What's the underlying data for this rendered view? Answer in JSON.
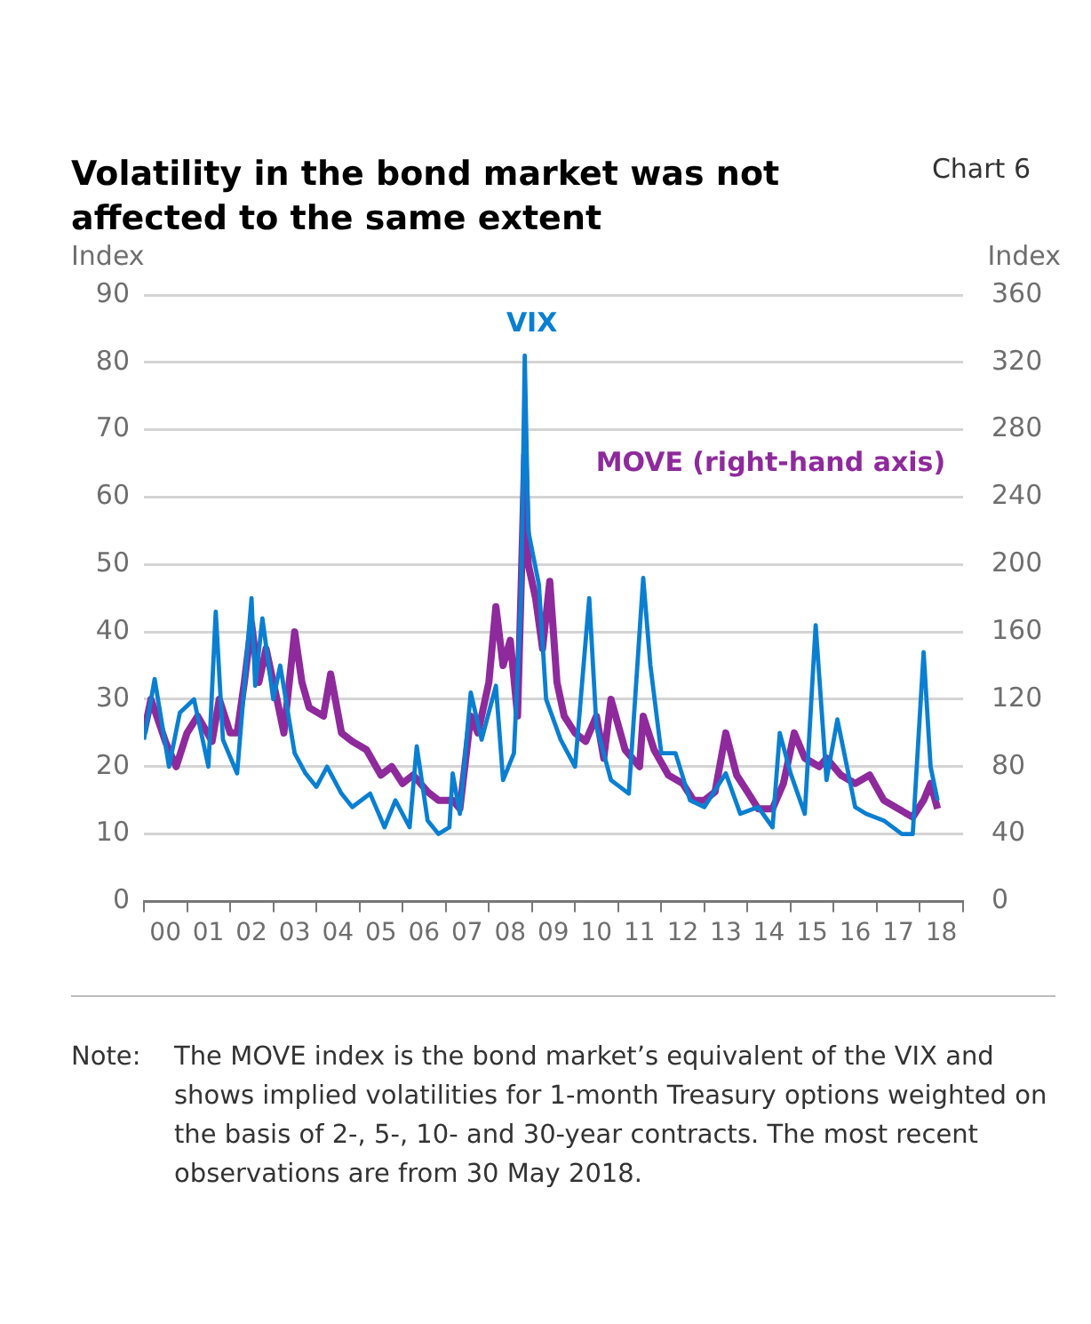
{
  "chart_data": {
    "type": "line",
    "title": "Volatility in the bond market was not affected to the same extent",
    "xlim": [
      "2000",
      "2019"
    ],
    "xticks": [
      {
        "value": "2000",
        "label": null
      },
      {
        "value": "2000-07",
        "label": "00"
      },
      {
        "value": "2001",
        "label": null
      },
      {
        "value": "2001-07",
        "label": "01"
      },
      {
        "value": "2002",
        "label": null
      },
      {
        "value": "2002-07",
        "label": "02"
      },
      {
        "value": "2003",
        "label": null
      },
      {
        "value": "2003-07",
        "label": "03"
      },
      {
        "value": "2004",
        "label": null
      },
      {
        "value": "2004-07",
        "label": "04"
      },
      {
        "value": "2005",
        "label": null
      },
      {
        "value": "2005-07",
        "label": "05"
      },
      {
        "value": "2006",
        "label": null
      },
      {
        "value": "2006-07",
        "label": "06"
      },
      {
        "value": "2007",
        "label": null
      },
      {
        "value": "2007-07",
        "label": "07"
      },
      {
        "value": "2008",
        "label": null
      },
      {
        "value": "2008-07",
        "label": "08"
      },
      {
        "value": "2009",
        "label": null
      },
      {
        "value": "2009-07",
        "label": "09"
      },
      {
        "value": "2010",
        "label": null
      },
      {
        "value": "2010-07",
        "label": "10"
      },
      {
        "value": "2011",
        "label": null
      },
      {
        "value": "2011-07",
        "label": "11"
      },
      {
        "value": "2012",
        "label": null
      },
      {
        "value": "2012-07",
        "label": "12"
      },
      {
        "value": "2013",
        "label": null
      },
      {
        "value": "2013-07",
        "label": "13"
      },
      {
        "value": "2014",
        "label": null
      },
      {
        "value": "2014-07",
        "label": "14"
      },
      {
        "value": "2015",
        "label": null
      },
      {
        "value": "2015-07",
        "label": "15"
      },
      {
        "value": "2016",
        "label": null
      },
      {
        "value": "2016-07",
        "label": "16"
      },
      {
        "value": "2017",
        "label": null
      },
      {
        "value": "2017-07",
        "label": "17"
      },
      {
        "value": "2018",
        "label": null
      },
      {
        "value": "2018-07",
        "label": "18"
      },
      {
        "value": "2019",
        "label": null
      }
    ],
    "ylabel": "Index",
    "y2label": "Index",
    "ylim": [
      0,
      90
    ],
    "yticks": [
      0,
      10,
      20,
      30,
      40,
      50,
      60,
      70,
      80,
      90
    ],
    "y2lim": [
      0,
      360
    ],
    "y2ticks": [
      0,
      40,
      80,
      120,
      160,
      200,
      240,
      280,
      320,
      360
    ],
    "grid": "y",
    "legend": false,
    "marker": "none",
    "line_style": "solid",
    "series": [
      {
        "name": "VIX",
        "color": "#0a7fd2",
        "x": [
          "2000-01",
          "2000-04",
          "2000-08",
          "2000-11",
          "2001-03",
          "2001-07",
          "2001-09",
          "2001-11",
          "2002-03",
          "2002-07",
          "2002-08",
          "2002-10",
          "2003-01",
          "2003-03",
          "2003-07",
          "2003-10",
          "2004-01",
          "2004-04",
          "2004-08",
          "2004-11",
          "2005-04",
          "2005-08",
          "2005-11",
          "2006-03",
          "2006-05",
          "2006-08",
          "2006-11",
          "2007-02",
          "2007-03",
          "2007-05",
          "2007-08",
          "2007-11",
          "2008-03",
          "2008-05",
          "2008-08",
          "2008-10",
          "2008-11",
          "2008-12",
          "2009-03",
          "2009-05",
          "2009-09",
          "2010-01",
          "2010-05",
          "2010-07",
          "2010-11",
          "2011-04",
          "2011-08",
          "2011-10",
          "2012-01",
          "2012-05",
          "2012-09",
          "2013-01",
          "2013-07",
          "2013-11",
          "2014-04",
          "2014-08",
          "2014-10",
          "2015-01",
          "2015-05",
          "2015-08",
          "2015-11",
          "2016-02",
          "2016-07",
          "2016-10",
          "2017-03",
          "2017-08",
          "2017-11",
          "2018-02",
          "2018-04",
          "2018-05-30"
        ],
        "values": [
          24,
          33,
          20,
          28,
          30,
          20,
          43,
          24,
          19,
          45,
          32,
          42,
          30,
          35,
          22,
          19,
          17,
          20,
          16,
          14,
          16,
          11,
          15,
          11,
          23,
          12,
          10,
          11,
          19,
          13,
          31,
          24,
          32,
          18,
          22,
          45,
          81,
          55,
          47,
          30,
          24,
          20,
          45,
          26,
          18,
          16,
          48,
          35,
          22,
          22,
          15,
          14,
          19,
          13,
          14,
          11,
          25,
          19,
          13,
          41,
          18,
          27,
          14,
          13,
          12,
          10,
          10,
          37,
          20,
          15
        ]
      },
      {
        "name": "MOVE (right-hand axis)",
        "color": "#8e2a9c",
        "axis": "y2",
        "x": [
          "2000-01",
          "2000-03",
          "2000-07",
          "2000-10",
          "2001-01",
          "2001-04",
          "2001-08",
          "2001-10",
          "2002-01",
          "2002-03",
          "2002-05",
          "2002-07",
          "2002-09",
          "2002-11",
          "2003-02",
          "2003-04",
          "2003-07",
          "2003-09",
          "2003-11",
          "2004-03",
          "2004-05",
          "2004-08",
          "2004-11",
          "2005-03",
          "2005-07",
          "2005-10",
          "2006-01",
          "2006-04",
          "2006-08",
          "2006-11",
          "2007-03",
          "2007-05",
          "2007-08",
          "2007-10",
          "2008-01",
          "2008-03",
          "2008-05",
          "2008-07",
          "2008-09",
          "2008-11",
          "2008-12",
          "2009-02",
          "2009-04",
          "2009-06",
          "2009-08",
          "2009-10",
          "2010-01",
          "2010-04",
          "2010-07",
          "2010-09",
          "2010-11",
          "2011-03",
          "2011-07",
          "2011-08",
          "2011-11",
          "2012-03",
          "2012-07",
          "2012-10",
          "2013-01",
          "2013-04",
          "2013-07",
          "2013-10",
          "2014-01",
          "2014-04",
          "2014-08",
          "2014-11",
          "2015-02",
          "2015-05",
          "2015-09",
          "2015-11",
          "2016-03",
          "2016-07",
          "2016-11",
          "2017-03",
          "2017-07",
          "2017-11",
          "2018-02",
          "2018-04",
          "2018-05-30"
        ],
        "values": [
          100,
          120,
          95,
          80,
          100,
          110,
          95,
          120,
          100,
          100,
          130,
          165,
          130,
          150,
          120,
          100,
          160,
          130,
          115,
          110,
          135,
          100,
          95,
          90,
          75,
          80,
          70,
          75,
          65,
          60,
          60,
          55,
          110,
          100,
          130,
          175,
          140,
          155,
          110,
          265,
          200,
          180,
          150,
          190,
          130,
          110,
          100,
          95,
          110,
          85,
          120,
          90,
          80,
          110,
          90,
          75,
          70,
          60,
          60,
          65,
          100,
          75,
          65,
          55,
          55,
          70,
          100,
          85,
          80,
          85,
          75,
          70,
          75,
          60,
          55,
          50,
          60,
          70,
          55
        ]
      }
    ],
    "annotations": [
      "Chart 6",
      "Note:\tThe MOVE index is the bond market’s equivalent of the VIX and shows implied volatilities for 1-month Treasury options weighted on the basis of 2-, 5-, 10- and 30-year contracts. The most recent observations are from 30 May 2018."
    ]
  }
}
